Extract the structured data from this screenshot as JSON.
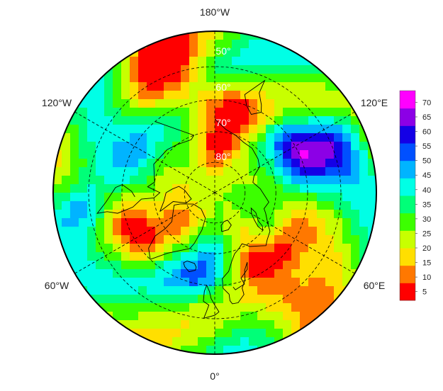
{
  "map": {
    "projection": "north-polar-stereographic",
    "longitude_labels": {
      "top": "180°W",
      "bottom": "0°",
      "upper_left": "120°W",
      "upper_right": "120°E",
      "lower_left": "60°W",
      "lower_right": "60°E"
    },
    "latitude_labels": [
      "50°",
      "60°",
      "70°",
      "80°"
    ],
    "colormap": [
      "#ff0000",
      "#ff7800",
      "#ffdf00",
      "#c8ff00",
      "#3cff00",
      "#00ff78",
      "#00ffe6",
      "#00b4ff",
      "#0050ff",
      "#1400e6",
      "#8c00e6",
      "#ff00ff"
    ]
  },
  "colorbar": {
    "ticks": [
      "5",
      "10",
      "15",
      "20",
      "25",
      "30",
      "35",
      "40",
      "45",
      "50",
      "55",
      "60",
      "65",
      "70"
    ],
    "range": [
      2,
      74
    ]
  }
}
